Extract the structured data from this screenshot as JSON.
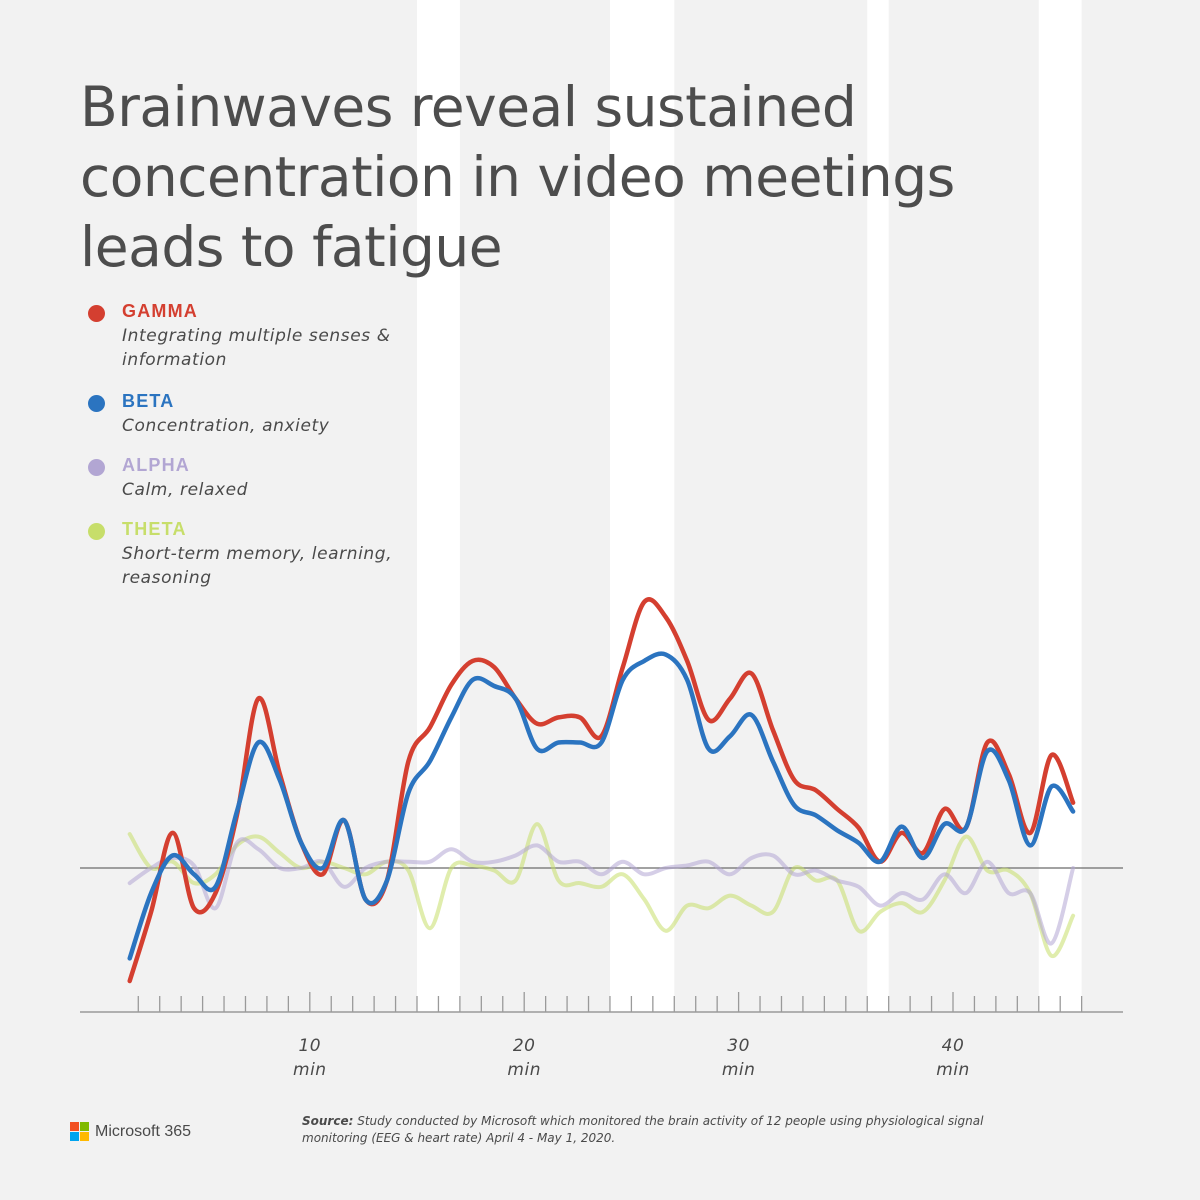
{
  "title": "Brainwaves reveal sustained concentration in video meetings leads to fatigue",
  "legend": [
    {
      "name": "GAMMA",
      "desc": "Integrating multiple senses & information",
      "color": "#d43f30"
    },
    {
      "name": "BETA",
      "desc": "Concentration, anxiety",
      "color": "#2b74c0"
    },
    {
      "name": "ALPHA",
      "desc": "Calm, relaxed",
      "color": "#b2a6d3"
    },
    {
      "name": "THETA",
      "desc": "Short-term memory, learning, reasoning",
      "color": "#c7de6a"
    }
  ],
  "x_ticks": [
    {
      "value": 10,
      "label": "10",
      "unit": "min"
    },
    {
      "value": 20,
      "label": "20",
      "unit": "min"
    },
    {
      "value": 30,
      "label": "30",
      "unit": "min"
    },
    {
      "value": 40,
      "label": "40",
      "unit": "min"
    }
  ],
  "source": {
    "lead": "Source:",
    "text": " Study conducted by Microsoft which monitored the brain activity of 12 people using physiological signal monitoring (EEG & heart rate) April 4 - May 1, 2020."
  },
  "brand": {
    "name": "Microsoft 365",
    "logo_colors": [
      "#f25022",
      "#7fba00",
      "#00a4ef",
      "#ffb900"
    ]
  },
  "chart_data": {
    "type": "line",
    "xlim": [
      0,
      47
    ],
    "ylim": [
      -0.9,
      2.2
    ],
    "baseline": 0,
    "grid": false,
    "legend_position": "top-left",
    "shaded_bands": [
      [
        15,
        17
      ],
      [
        24,
        27
      ],
      [
        36,
        37
      ],
      [
        44,
        46
      ]
    ],
    "series": [
      {
        "name": "GAMMA",
        "color": "#d43f30",
        "x": [
          1.6,
          2.6,
          3.6,
          4.6,
          5.6,
          6.6,
          7.6,
          8.6,
          9.6,
          10.6,
          11.6,
          12.6,
          13.6,
          14.6,
          15.6,
          16.6,
          17.6,
          18.6,
          19.6,
          20.6,
          21.6,
          22.6,
          23.6,
          24.6,
          25.6,
          26.6,
          27.6,
          28.6,
          29.6,
          30.6,
          31.6,
          32.6,
          33.6,
          34.6,
          35.6,
          36.6,
          37.6,
          38.6,
          39.6,
          40.6,
          41.6,
          42.6,
          43.6,
          44.6,
          45.6
        ],
        "y": [
          -0.9,
          -0.35,
          0.28,
          -0.32,
          -0.2,
          0.42,
          1.35,
          0.75,
          0.2,
          -0.05,
          0.38,
          -0.25,
          -0.1,
          0.85,
          1.12,
          1.46,
          1.65,
          1.6,
          1.35,
          1.15,
          1.2,
          1.2,
          1.05,
          1.6,
          2.12,
          2.0,
          1.65,
          1.18,
          1.35,
          1.55,
          1.1,
          0.7,
          0.62,
          0.47,
          0.32,
          0.05,
          0.28,
          0.12,
          0.47,
          0.32,
          1.0,
          0.75,
          0.28,
          0.9,
          0.52
        ]
      },
      {
        "name": "BETA",
        "color": "#2b74c0",
        "x": [
          1.6,
          2.6,
          3.6,
          4.6,
          5.6,
          6.6,
          7.6,
          8.6,
          9.6,
          10.6,
          11.6,
          12.6,
          13.6,
          14.6,
          15.6,
          16.6,
          17.6,
          18.6,
          19.6,
          20.6,
          21.6,
          22.6,
          23.6,
          24.6,
          25.6,
          26.6,
          27.6,
          28.6,
          29.6,
          30.6,
          31.6,
          32.6,
          33.6,
          34.6,
          35.6,
          36.6,
          37.6,
          38.6,
          39.6,
          40.6,
          41.6,
          42.6,
          43.6,
          44.6,
          45.6
        ],
        "y": [
          -0.72,
          -0.2,
          0.1,
          -0.05,
          -0.15,
          0.45,
          1.0,
          0.7,
          0.2,
          0.0,
          0.38,
          -0.25,
          -0.1,
          0.6,
          0.85,
          1.2,
          1.5,
          1.45,
          1.35,
          0.95,
          1.0,
          1.0,
          1.0,
          1.5,
          1.65,
          1.7,
          1.5,
          0.95,
          1.05,
          1.22,
          0.85,
          0.5,
          0.42,
          0.3,
          0.2,
          0.05,
          0.33,
          0.08,
          0.35,
          0.32,
          0.93,
          0.7,
          0.18,
          0.65,
          0.45
        ]
      },
      {
        "name": "ALPHA",
        "color": "#b2a6d3",
        "x": [
          1.6,
          2.6,
          3.6,
          4.6,
          5.6,
          6.6,
          7.6,
          8.6,
          9.6,
          10.6,
          11.6,
          12.6,
          13.6,
          14.6,
          15.6,
          16.6,
          17.6,
          18.6,
          19.6,
          20.6,
          21.6,
          22.6,
          23.6,
          24.6,
          25.6,
          26.6,
          27.6,
          28.6,
          29.6,
          30.6,
          31.6,
          32.6,
          33.6,
          34.6,
          35.6,
          36.6,
          37.6,
          38.6,
          39.6,
          40.6,
          41.6,
          42.6,
          43.6,
          44.6,
          45.6
        ],
        "y": [
          -0.12,
          0.0,
          0.08,
          0.02,
          -0.32,
          0.2,
          0.15,
          0.0,
          0.0,
          0.05,
          -0.15,
          0.0,
          0.05,
          0.05,
          0.05,
          0.15,
          0.05,
          0.05,
          0.1,
          0.18,
          0.05,
          0.05,
          -0.05,
          0.05,
          -0.05,
          0.0,
          0.02,
          0.05,
          -0.05,
          0.08,
          0.1,
          -0.05,
          -0.02,
          -0.1,
          -0.15,
          -0.3,
          -0.2,
          -0.25,
          -0.05,
          -0.2,
          0.05,
          -0.2,
          -0.2,
          -0.6,
          0.0
        ]
      },
      {
        "name": "THETA",
        "color": "#c7de6a",
        "x": [
          1.6,
          2.6,
          3.6,
          4.6,
          5.6,
          6.6,
          7.6,
          8.6,
          9.6,
          10.6,
          11.6,
          12.6,
          13.6,
          14.6,
          15.6,
          16.6,
          17.6,
          18.6,
          19.6,
          20.6,
          21.6,
          22.6,
          23.6,
          24.6,
          25.6,
          26.6,
          27.6,
          28.6,
          29.6,
          30.6,
          31.6,
          32.6,
          33.6,
          34.6,
          35.6,
          36.6,
          37.6,
          38.6,
          39.6,
          40.6,
          41.6,
          42.6,
          43.6,
          44.6,
          45.6
        ],
        "y": [
          0.27,
          0.0,
          0.05,
          -0.12,
          -0.05,
          0.18,
          0.25,
          0.12,
          0.0,
          0.05,
          0.0,
          -0.05,
          0.05,
          -0.02,
          -0.48,
          0.0,
          0.02,
          -0.02,
          -0.1,
          0.35,
          -0.1,
          -0.12,
          -0.15,
          -0.05,
          -0.25,
          -0.5,
          -0.3,
          -0.32,
          -0.22,
          -0.3,
          -0.35,
          0.0,
          -0.1,
          -0.1,
          -0.5,
          -0.35,
          -0.28,
          -0.35,
          -0.1,
          0.25,
          -0.02,
          -0.02,
          -0.2,
          -0.7,
          -0.38
        ]
      }
    ]
  }
}
